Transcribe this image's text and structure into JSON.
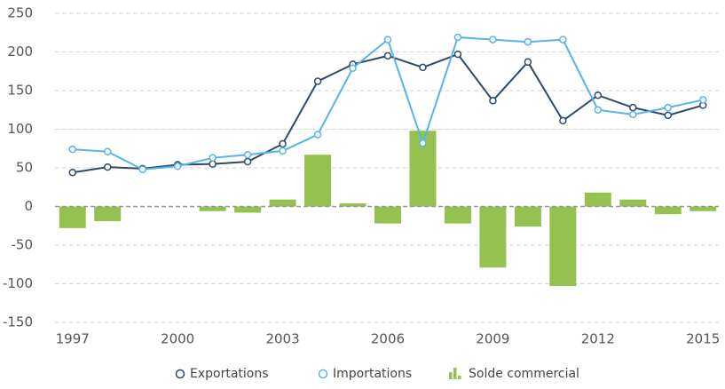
{
  "chart_data": {
    "type": "bar-line",
    "x": [
      1997,
      1998,
      1999,
      2000,
      2001,
      2002,
      2003,
      2004,
      2005,
      2006,
      2007,
      2008,
      2009,
      2010,
      2011,
      2012,
      2013,
      2014,
      2015
    ],
    "xlim": [
      1996.5,
      2015.45
    ],
    "xticks": [
      1997,
      2000,
      2003,
      2006,
      2009,
      2012,
      2015
    ],
    "ylim": [
      -150,
      250
    ],
    "yticks": [
      -150,
      -100,
      -50,
      0,
      50,
      100,
      150,
      200,
      250
    ],
    "grid": true,
    "legend": "bottom",
    "series": [
      {
        "name": "Exportations",
        "type": "line",
        "color": "#2d4a6a",
        "values": [
          44,
          51,
          49,
          54,
          55,
          58,
          81,
          162,
          184,
          195,
          180,
          197,
          137,
          187,
          111,
          144,
          128,
          118,
          131
        ]
      },
      {
        "name": "Importations",
        "type": "line",
        "color": "#58b4e8",
        "values": [
          74,
          71,
          48,
          52,
          63,
          67,
          72,
          93,
          179,
          216,
          82,
          219,
          216,
          213,
          216,
          125,
          119,
          128,
          138
        ]
      },
      {
        "name": "Solde commercial",
        "type": "bar",
        "color": "#95c151",
        "values": [
          -28,
          -19,
          0,
          0,
          -6,
          -8,
          9,
          67,
          4,
          -22,
          98,
          -22,
          -79,
          -26,
          -103,
          18,
          9,
          -10,
          -6
        ]
      }
    ]
  }
}
